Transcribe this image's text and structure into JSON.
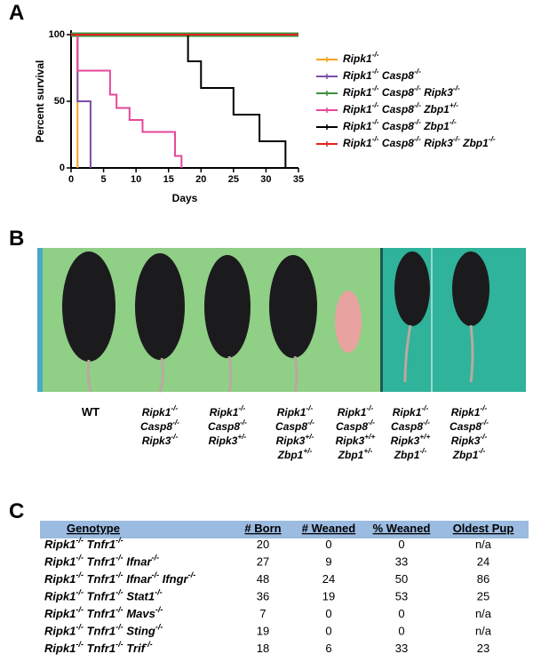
{
  "chart_data": {
    "type": "line",
    "step": true,
    "panel": "A",
    "ylabel": "Percent survival",
    "xlabel": "Days",
    "xlim": [
      0,
      35
    ],
    "xticks": [
      0,
      5,
      10,
      15,
      20,
      25,
      30,
      35
    ],
    "ylim": [
      0,
      100
    ],
    "yticks": [
      0,
      50,
      100
    ],
    "series": [
      {
        "name": "Ripk1-/-",
        "color": "#f5a31e",
        "x": [
          0,
          1
        ],
        "values": [
          100,
          0
        ]
      },
      {
        "name": "Ripk1-/- Casp8-/-",
        "color": "#7a4ea6",
        "x": [
          0,
          1,
          3
        ],
        "values": [
          100,
          50,
          0
        ]
      },
      {
        "name": "Ripk1-/- Casp8-/- Ripk3-/-",
        "color": "#3f8f3f",
        "x": [
          0,
          35
        ],
        "values": [
          100,
          100
        ]
      },
      {
        "name": "Ripk1-/- Casp8-/- Zbp1+/-",
        "color": "#e6479a",
        "x": [
          0,
          1,
          6,
          7,
          9,
          11,
          16,
          17
        ],
        "values": [
          100,
          73,
          55,
          45,
          36,
          27,
          9,
          0
        ]
      },
      {
        "name": "Ripk1-/- Casp8-/- Zbp1-/-",
        "color": "#000000",
        "x": [
          0,
          18,
          20,
          25,
          29,
          33
        ],
        "values": [
          100,
          80,
          60,
          40,
          20,
          0
        ]
      },
      {
        "name": "Ripk1-/- Casp8-/- Ripk3-/- Zbp1-/-",
        "color": "#e4221e",
        "x": [
          0,
          35
        ],
        "values": [
          100,
          100
        ]
      }
    ]
  },
  "photo": {
    "panel": "B",
    "labels": [
      [
        "WT"
      ],
      [
        "Ripk1-/-",
        "Casp8-/-",
        "Ripk3-/-"
      ],
      [
        "Ripk1-/-",
        "Casp8-/-",
        "Ripk3+/-"
      ],
      [
        "Ripk1-/-",
        "Casp8-/-",
        "Ripk3+/-",
        "Zbp1+/-"
      ],
      [
        "Ripk1-/-",
        "Casp8-/-",
        "Ripk3+/+",
        "Zbp1+/-"
      ],
      [
        "Ripk1-/-",
        "Casp8-/-",
        "Ripk3+/+",
        "Zbp1-/-"
      ],
      [
        "Ripk1-/-",
        "Casp8-/-",
        "Ripk3-/-",
        "Zbp1-/-"
      ]
    ]
  },
  "table": {
    "panel": "C",
    "header": [
      "Genotype",
      "# Born",
      "# Weaned",
      "% Weaned",
      "Oldest Pup"
    ],
    "rows": [
      [
        "Ripk1-/- Tnfr1-/-",
        20,
        0,
        0,
        "n/a"
      ],
      [
        "Ripk1-/- Tnfr1-/- Ifnar-/-",
        27,
        9,
        33,
        24
      ],
      [
        "Ripk1-/- Tnfr1-/- Ifnar-/- Ifngr-/-",
        48,
        24,
        50,
        86
      ],
      [
        "Ripk1-/- Tnfr1-/- Stat1-/-",
        36,
        19,
        53,
        25
      ],
      [
        "Ripk1-/- Tnfr1-/- Mavs-/-",
        7,
        0,
        0,
        "n/a"
      ],
      [
        "Ripk1-/- Tnfr1-/- Sting-/-",
        19,
        0,
        0,
        "n/a"
      ],
      [
        "Ripk1-/- Tnfr1-/- Trif-/-",
        18,
        6,
        33,
        23
      ]
    ]
  }
}
